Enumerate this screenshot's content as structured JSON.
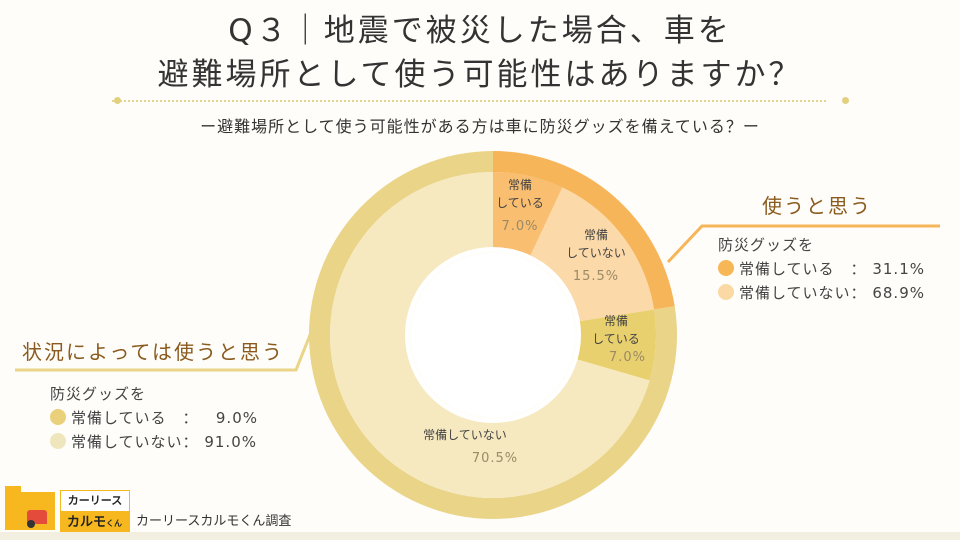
{
  "title_line1": "Q３｜地震で被災した場合、車を",
  "title_line2": "避難場所として使う可能性はありますか？",
  "subtitle": "ー避難場所として使う可能性がある方は車に防災グッズを備えている？ー",
  "chart_data": {
    "type": "pie",
    "title": "Q３｜地震で被災した場合、車を避難場所として使う可能性はありますか？",
    "outer_ring": [
      {
        "name": "使うと思う",
        "value": 22.5,
        "color": "#f7b55a"
      },
      {
        "name": "状況によっては使うと思う",
        "value": 77.5,
        "color": "#ead488"
      }
    ],
    "inner_ring": [
      {
        "name": "常備",
        "name2": "している",
        "value": 7.0,
        "label": "7.0%",
        "color": "#f9be6f"
      },
      {
        "name": "常備",
        "name2": "していない",
        "value": 15.5,
        "label": "15.5%",
        "color": "#fcd9a8"
      },
      {
        "name": "常備",
        "name2": "している",
        "value": 7.0,
        "label": "7.0%",
        "color": "#e9d06f"
      },
      {
        "name": "常備していない",
        "name2": "",
        "value": 70.5,
        "label": "70.5%",
        "color": "#f6e9bf"
      }
    ]
  },
  "right_group": {
    "heading": "使うと思う",
    "caption": "防災グッズを",
    "items": [
      {
        "label": "常備している　：",
        "value": "31.1%",
        "color": "#f7b757"
      },
      {
        "label": "常備していない：",
        "value": "68.9%",
        "color": "#fbd9a4"
      }
    ]
  },
  "left_group": {
    "heading": "状況によっては使うと思う",
    "caption": "防災グッズを",
    "items": [
      {
        "label": "常備している　：",
        "value": "  9.0%",
        "color": "#ead07a"
      },
      {
        "label": "常備していない：",
        "value": "91.0%",
        "color": "#f0e6bd"
      }
    ]
  },
  "logo": {
    "line1": "カーリース",
    "line2": "カルモ",
    "small": "くん"
  },
  "source": "カーリースカルモくん調査"
}
